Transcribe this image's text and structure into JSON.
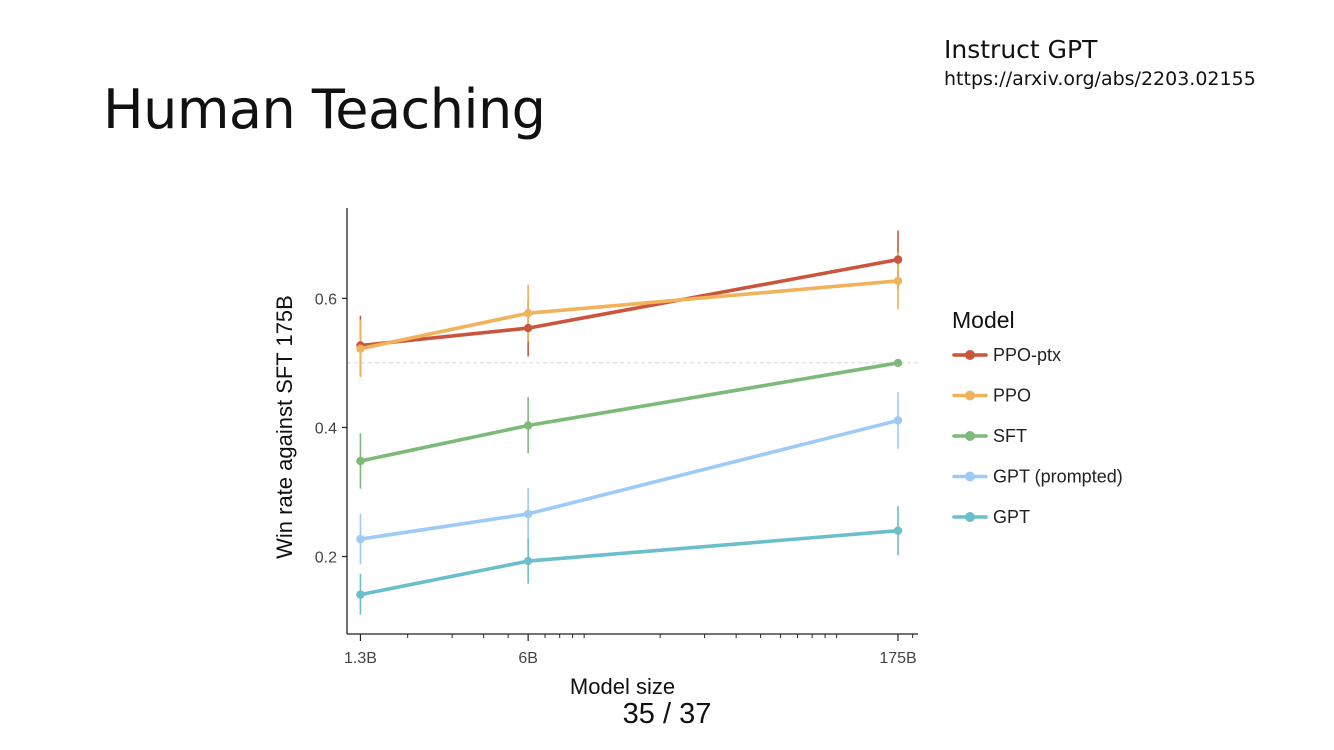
{
  "slide": {
    "title": "Human Teaching",
    "reference_title": "Instruct GPT",
    "reference_url": "https://arxiv.org/abs/2203.02155",
    "page_number": "35 / 37"
  },
  "colors": {
    "PPO-ptx": "#c9563c",
    "PPO": "#f0b25a",
    "SFT": "#7dba7a",
    "GPT (prompted)": "#9dcbf5",
    "GPT": "#6bbfcc",
    "axis": "#222222",
    "reference_line": "#d8d8d8"
  },
  "chart_data": {
    "type": "line",
    "x_scale": "log",
    "x": [
      "1.3B",
      "6B",
      "175B"
    ],
    "x_values": [
      1.3,
      6,
      175
    ],
    "xlabel": "Model size",
    "ylabel": "Win rate against SFT 175B",
    "ylim": [
      0.08,
      0.74
    ],
    "xlim": [
      1.15,
      210
    ],
    "y_ticks": [
      0.2,
      0.4,
      0.6
    ],
    "y_tick_labels": [
      "0.2",
      "0.4",
      "0.6"
    ],
    "x_tick_labels": [
      "1.3B",
      "6B",
      "175B"
    ],
    "x_minor_ticks": [
      2,
      3,
      4,
      5,
      7,
      8,
      9,
      10,
      20,
      30,
      40,
      50,
      60,
      70,
      80,
      90,
      100,
      200
    ],
    "reference_line": 0.5,
    "grid": false,
    "legend_title": "Model",
    "legend_position": "right",
    "series": [
      {
        "name": "PPO-ptx",
        "values": [
          0.527,
          0.554,
          0.66
        ],
        "err_low": [
          0.48,
          0.51,
          0.615
        ],
        "err_high": [
          0.573,
          0.598,
          0.705
        ]
      },
      {
        "name": "PPO",
        "values": [
          0.522,
          0.577,
          0.627
        ],
        "err_low": [
          0.478,
          0.533,
          0.583
        ],
        "err_high": [
          0.567,
          0.621,
          0.671
        ]
      },
      {
        "name": "SFT",
        "values": [
          0.348,
          0.403,
          0.5
        ],
        "err_low": [
          0.305,
          0.36,
          0.5
        ],
        "err_high": [
          0.391,
          0.447,
          0.5
        ]
      },
      {
        "name": "GPT (prompted)",
        "values": [
          0.227,
          0.266,
          0.411
        ],
        "err_low": [
          0.188,
          0.227,
          0.367
        ],
        "err_high": [
          0.266,
          0.306,
          0.455
        ]
      },
      {
        "name": "GPT",
        "values": [
          0.141,
          0.193,
          0.24
        ],
        "err_low": [
          0.11,
          0.158,
          0.202
        ],
        "err_high": [
          0.173,
          0.228,
          0.278
        ]
      }
    ]
  }
}
